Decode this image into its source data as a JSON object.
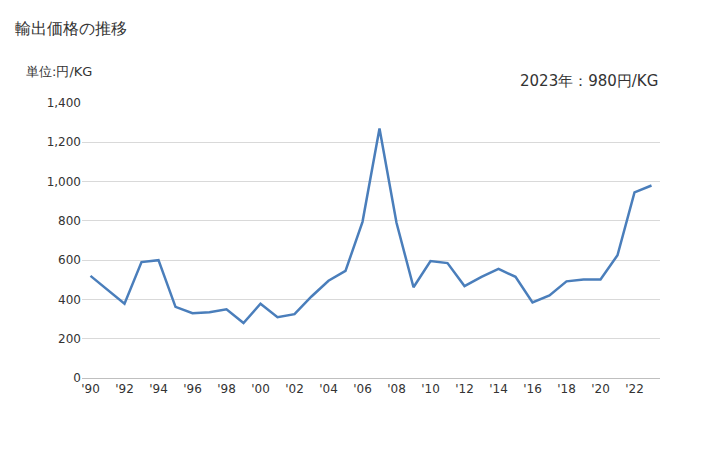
{
  "chart_data": {
    "type": "line",
    "title": "輸出価格の推移",
    "annotations": [
      "単位:円/KG",
      "2023年：980円/KG"
    ],
    "x": [
      1990,
      1991,
      1992,
      1993,
      1994,
      1995,
      1996,
      1997,
      1998,
      1999,
      2000,
      2001,
      2002,
      2003,
      2004,
      2005,
      2006,
      2007,
      2008,
      2009,
      2010,
      2011,
      2012,
      2013,
      2014,
      2015,
      2016,
      2017,
      2018,
      2019,
      2020,
      2021,
      2022,
      2023
    ],
    "values": [
      520,
      450,
      378,
      590,
      600,
      362,
      330,
      335,
      350,
      280,
      378,
      310,
      325,
      415,
      495,
      545,
      795,
      1270,
      790,
      462,
      595,
      585,
      468,
      515,
      555,
      515,
      385,
      420,
      492,
      502,
      502,
      625,
      945,
      980
    ],
    "color": "#4a7ebb",
    "xlim": [
      1989.5,
      2023.5
    ],
    "xticks": [
      {
        "value": 1990,
        "label": "'90"
      },
      {
        "value": 1992,
        "label": "'92"
      },
      {
        "value": 1994,
        "label": "'94"
      },
      {
        "value": 1996,
        "label": "'96"
      },
      {
        "value": 1998,
        "label": "'98"
      },
      {
        "value": 2000,
        "label": "'00"
      },
      {
        "value": 2002,
        "label": "'02"
      },
      {
        "value": 2004,
        "label": "'04"
      },
      {
        "value": 2006,
        "label": "'06"
      },
      {
        "value": 2008,
        "label": "'08"
      },
      {
        "value": 2010,
        "label": "'10"
      },
      {
        "value": 2012,
        "label": "'12"
      },
      {
        "value": 2014,
        "label": "'14"
      },
      {
        "value": 2016,
        "label": "'16"
      },
      {
        "value": 2018,
        "label": "'18"
      },
      {
        "value": 2020,
        "label": "'20"
      },
      {
        "value": 2022,
        "label": "'22"
      }
    ],
    "ylim": [
      0,
      1400
    ],
    "yticks": [
      0,
      200,
      400,
      600,
      800,
      {
        "value": 1000,
        "label": "1,000"
      },
      {
        "value": 1200,
        "label": "1,200"
      },
      {
        "value": 1400,
        "label": "1,400"
      }
    ],
    "grid": true
  }
}
